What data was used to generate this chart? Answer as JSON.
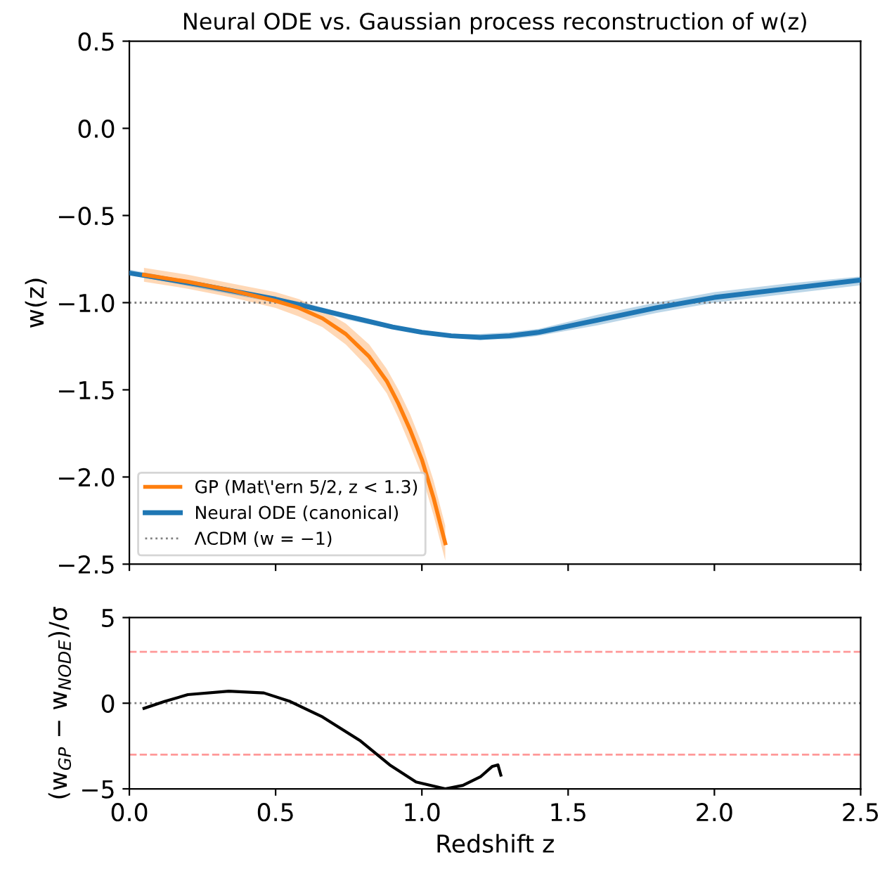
{
  "chart_data": [
    {
      "type": "line",
      "title": "Neural ODE vs. Gaussian process reconstruction of w(z)",
      "ylabel": "w(z)",
      "xlim": [
        0,
        2.5
      ],
      "ylim": [
        -2.5,
        0.5
      ],
      "xticks": [
        0,
        0.5,
        1,
        1.5,
        2,
        2.5
      ],
      "yticks": [
        {
          "value": 0.5,
          "label": "0.5"
        },
        {
          "value": 0,
          "label": "0.0"
        },
        {
          "value": -0.5,
          "label": "−0.5"
        },
        {
          "value": -1,
          "label": "−1.0"
        },
        {
          "value": -1.5,
          "label": "−1.5"
        },
        {
          "value": -2,
          "label": "−2.0"
        },
        {
          "value": -2.5,
          "label": "−2.5"
        }
      ],
      "tick_labels": "y",
      "grid": false,
      "legend": "bottom left",
      "series": [
        {
          "name": "GP (Mat\\'ern 5/2, z < 1.3)",
          "color": "#ff7f0e",
          "x": [
            0.05,
            0.2,
            0.35,
            0.5,
            0.58,
            0.66,
            0.74,
            0.82,
            0.88,
            0.92,
            0.96,
            1.0,
            1.04,
            1.08
          ],
          "values": [
            -0.84,
            -0.88,
            -0.93,
            -0.99,
            -1.03,
            -1.09,
            -1.18,
            -1.31,
            -1.45,
            -1.58,
            -1.73,
            -1.9,
            -2.12,
            -2.38
          ],
          "lower": [
            -0.88,
            -0.92,
            -0.97,
            -1.03,
            -1.08,
            -1.14,
            -1.24,
            -1.38,
            -1.52,
            -1.66,
            -1.82,
            -1.99,
            -2.22,
            -2.48
          ],
          "upper": [
            -0.8,
            -0.84,
            -0.89,
            -0.94,
            -0.98,
            -1.04,
            -1.12,
            -1.24,
            -1.38,
            -1.5,
            -1.64,
            -1.81,
            -2.02,
            -2.28
          ]
        },
        {
          "name": "Neural ODE (canonical)",
          "color": "#1f77b4",
          "x": [
            0,
            0.25,
            0.5,
            0.6,
            0.75,
            0.9,
            1.0,
            1.1,
            1.2,
            1.3,
            1.4,
            1.6,
            1.8,
            2.0,
            2.25,
            2.5
          ],
          "values": [
            -0.83,
            -0.9,
            -0.98,
            -1.02,
            -1.08,
            -1.14,
            -1.17,
            -1.19,
            -1.2,
            -1.19,
            -1.17,
            -1.1,
            -1.03,
            -0.97,
            -0.92,
            -0.87
          ],
          "lower": [
            -0.84,
            -0.92,
            -1.0,
            -1.03,
            -1.1,
            -1.15,
            -1.18,
            -1.2,
            -1.21,
            -1.21,
            -1.19,
            -1.13,
            -1.06,
            -1.0,
            -0.95,
            -0.9
          ],
          "upper": [
            -0.81,
            -0.89,
            -0.97,
            -1.0,
            -1.07,
            -1.13,
            -1.16,
            -1.18,
            -1.18,
            -1.17,
            -1.15,
            -1.07,
            -1.0,
            -0.94,
            -0.89,
            -0.85
          ]
        }
      ],
      "ref_lines": [
        {
          "axis": "y",
          "value": -1,
          "label": "ΛCDM (w = −1)",
          "color": "#808080",
          "line_style": "dotted"
        }
      ]
    },
    {
      "type": "line",
      "xlabel": "Redshift z",
      "ylabel": "(w$_{GP}$ − w$_{NODE}$)/σ",
      "xlim": [
        0,
        2.5
      ],
      "ylim": [
        -5,
        5
      ],
      "xticks": [
        {
          "value": 0,
          "label": "0.0"
        },
        {
          "value": 0.5,
          "label": "0.5"
        },
        {
          "value": 1,
          "label": "1.0"
        },
        {
          "value": 1.5,
          "label": "1.5"
        },
        {
          "value": 2,
          "label": "2.0"
        },
        {
          "value": 2.5,
          "label": "2.5"
        }
      ],
      "yticks": [
        {
          "value": -5,
          "label": "−5"
        },
        0,
        5
      ],
      "grid": false,
      "series": [
        {
          "color": "#000000",
          "x": [
            0.05,
            0.12,
            0.2,
            0.34,
            0.46,
            0.55,
            0.66,
            0.79,
            0.89,
            0.98,
            1.08,
            1.14,
            1.2,
            1.24,
            1.26,
            1.27
          ],
          "values": [
            -0.3,
            0.1,
            0.5,
            0.7,
            0.6,
            0.1,
            -0.8,
            -2.2,
            -3.6,
            -4.6,
            -5.0,
            -4.8,
            -4.3,
            -3.7,
            -3.6,
            -4.2
          ]
        }
      ],
      "ref_lines": [
        {
          "axis": "y",
          "value": 3,
          "color": "#ff9999",
          "line_style": "dashed"
        },
        {
          "axis": "y",
          "value": -3,
          "color": "#ff9999",
          "line_style": "dashed"
        },
        {
          "axis": "y",
          "value": 0,
          "color": "#808080",
          "line_style": "dotted"
        }
      ]
    }
  ]
}
